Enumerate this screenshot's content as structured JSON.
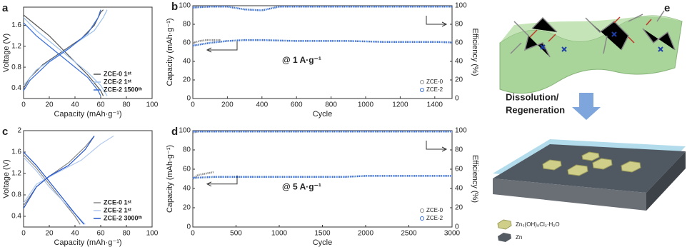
{
  "chart_data": [
    {
      "type": "line",
      "label": "a",
      "xlabel": "Capacity (mAh·g⁻¹)",
      "ylabel": "Voltage (V)",
      "xlim": [
        0,
        100
      ],
      "xticks": [
        0,
        20,
        40,
        60,
        80,
        100
      ],
      "ylim": [
        0.2,
        1.95
      ],
      "yticks": [
        0.4,
        0.8,
        1.2,
        1.6
      ],
      "series": [
        {
          "name": "ZCE-0 1ˢᵗ",
          "color": "#555555",
          "x": [
            0,
            10,
            20,
            30,
            40,
            50,
            60,
            62,
            null,
            0,
            5,
            15,
            30,
            45,
            55,
            60,
            62
          ],
          "values": [
            1.8,
            1.6,
            1.4,
            1.15,
            0.9,
            0.65,
            0.35,
            0.25,
            null,
            0.4,
            0.6,
            0.85,
            1.1,
            1.35,
            1.6,
            1.85,
            1.9
          ]
        },
        {
          "name": "ZCE-2 1ˢᵗ",
          "color": "#9ec1ee",
          "x": [
            0,
            10,
            20,
            30,
            40,
            50,
            60,
            65,
            null,
            0,
            10,
            25,
            40,
            55,
            62,
            65
          ],
          "values": [
            1.75,
            1.5,
            1.3,
            1.1,
            0.9,
            0.7,
            0.45,
            0.25,
            null,
            0.45,
            0.75,
            1.0,
            1.25,
            1.5,
            1.75,
            1.9
          ]
        },
        {
          "name": "ZCE-2 1500ᵗʰ",
          "color": "#3a6fd8",
          "x": [
            0,
            10,
            20,
            30,
            40,
            50,
            58,
            60,
            null,
            0,
            5,
            20,
            35,
            50,
            58,
            60
          ],
          "values": [
            1.65,
            1.4,
            1.2,
            1.0,
            0.8,
            0.6,
            0.35,
            0.25,
            null,
            0.35,
            0.55,
            0.9,
            1.15,
            1.45,
            1.75,
            1.9
          ]
        }
      ]
    },
    {
      "type": "line",
      "label": "b",
      "xlabel": "Cycle",
      "ylabel": "Capacity (mAh·g⁻¹)",
      "y2label": "Efficiency (%)",
      "annotation": "@ 1 A·g⁻¹",
      "xlim": [
        0,
        1500
      ],
      "xticks": [
        0,
        200,
        400,
        600,
        800,
        1000,
        1200,
        1400
      ],
      "ylim": [
        0,
        100
      ],
      "yticks": [
        0,
        20,
        40,
        60,
        80,
        100
      ],
      "y2lim": [
        0,
        100
      ],
      "y2ticks": [
        0,
        20,
        40,
        60,
        80,
        100
      ],
      "series": [
        {
          "name": "ZCE-0",
          "color": "#8c8c8c",
          "x": [
            0,
            40,
            80,
            120,
            160
          ],
          "values": [
            60,
            62,
            63,
            63,
            63
          ],
          "efficiency": [
            98,
            99,
            99,
            99,
            99
          ]
        },
        {
          "name": "ZCE-2",
          "color": "#3a6fd8",
          "x": [
            0,
            100,
            200,
            300,
            400,
            500,
            600,
            700,
            800,
            900,
            1000,
            1100,
            1200,
            1300,
            1400,
            1500
          ],
          "values": [
            57,
            60,
            62,
            63,
            63,
            62.5,
            62,
            62,
            62,
            62,
            61.5,
            61,
            61,
            61,
            61,
            60.5
          ],
          "efficiency": [
            98,
            99,
            99,
            96,
            95,
            99,
            99,
            99,
            99,
            99,
            99,
            99,
            99,
            99,
            99,
            99
          ]
        }
      ]
    },
    {
      "type": "line",
      "label": "c",
      "xlabel": "Capacity (mAh·g⁻¹)",
      "ylabel": "Voltage (V)",
      "xlim": [
        0,
        100
      ],
      "xticks": [
        0,
        20,
        40,
        60,
        80,
        100
      ],
      "ylim": [
        0.2,
        2.0
      ],
      "yticks": [
        0.4,
        0.8,
        1.2,
        1.6,
        2.0
      ],
      "series": [
        {
          "name": "ZCE-0 1ˢᵗ",
          "color": "#888888",
          "x": [
            0,
            10,
            20,
            30,
            40,
            44,
            null,
            0,
            10,
            20,
            35,
            48,
            55
          ],
          "values": [
            1.55,
            1.3,
            1.0,
            0.7,
            0.4,
            0.25,
            null,
            0.6,
            0.95,
            1.15,
            1.4,
            1.7,
            1.9
          ]
        },
        {
          "name": "ZCE-2 1ˢᵗ",
          "color": "#b0c8ee",
          "x": [
            0,
            10,
            20,
            30,
            40,
            48,
            null,
            0,
            10,
            25,
            45,
            60,
            70
          ],
          "values": [
            1.5,
            1.25,
            0.95,
            0.7,
            0.45,
            0.25,
            null,
            0.65,
            1.0,
            1.2,
            1.45,
            1.75,
            1.9
          ]
        },
        {
          "name": "ZCE-2 3000ᵗʰ",
          "color": "#2255cc",
          "x": [
            0,
            10,
            20,
            30,
            40,
            47,
            null,
            0,
            10,
            20,
            35,
            48,
            55
          ],
          "values": [
            1.6,
            1.35,
            1.05,
            0.75,
            0.45,
            0.25,
            null,
            0.55,
            0.95,
            1.15,
            1.35,
            1.65,
            1.9
          ]
        }
      ]
    },
    {
      "type": "line",
      "label": "d",
      "xlabel": "Cycle",
      "ylabel": "Capacity (mAh·g⁻¹)",
      "y2label": "Efficiency (%)",
      "annotation": "@ 5 A·g⁻¹",
      "xlim": [
        0,
        3000
      ],
      "xticks": [
        0,
        500,
        1000,
        1500,
        2000,
        2500,
        3000
      ],
      "ylim": [
        0,
        100
      ],
      "yticks": [
        0,
        20,
        40,
        60,
        80,
        100
      ],
      "y2lim": [
        0,
        100
      ],
      "y2ticks": [
        0,
        20,
        40,
        60,
        80,
        100
      ],
      "series": [
        {
          "name": "ZCE-0",
          "color": "#8c8c8c",
          "x": [
            0,
            60,
            120,
            180,
            240
          ],
          "values": [
            50,
            54,
            55,
            56,
            57
          ],
          "efficiency": [
            98,
            99,
            99,
            99,
            99
          ]
        },
        {
          "name": "ZCE-2",
          "color": "#3a6fd8",
          "x": [
            0,
            250,
            500,
            750,
            1000,
            1250,
            1500,
            1750,
            2000,
            2250,
            2500,
            2750,
            3000
          ],
          "values": [
            51,
            52,
            52,
            52,
            52,
            52,
            52,
            52,
            53,
            53,
            53,
            53,
            53
          ],
          "efficiency": [
            99,
            99,
            99,
            99,
            99,
            99,
            99,
            99,
            99,
            99,
            99,
            99,
            99
          ]
        }
      ]
    }
  ],
  "schematic": {
    "label": "e",
    "process": [
      "Dissolution/",
      "Regeneration"
    ],
    "legend": [
      "Zn₅(OH)₈Cl₂·H₂O",
      "Zn"
    ]
  }
}
